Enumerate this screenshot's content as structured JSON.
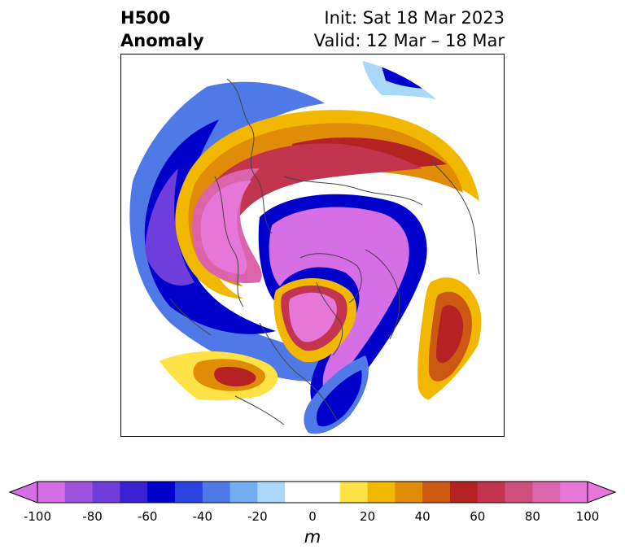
{
  "header": {
    "title_line1": "H500",
    "title_line2": "Anomaly",
    "init_line": "Init: Sat 18 Mar 2023",
    "valid_line": "Valid: 12 Mar – 18 Mar"
  },
  "colorbar": {
    "unit": "m",
    "ticks": [
      "-100",
      "-80",
      "-60",
      "-40",
      "-20",
      "0",
      "20",
      "40",
      "60",
      "80",
      "100"
    ],
    "colors": [
      "#d66ee6",
      "#9e52de",
      "#6e3ddc",
      "#3b1fd2",
      "#0000cc",
      "#2b44df",
      "#4f79e6",
      "#74acf2",
      "#aad8fa",
      "#ffffff",
      "#ffffff",
      "#ffe246",
      "#f2b800",
      "#e08c06",
      "#cc5812",
      "#b42222",
      "#c3344e",
      "#d04f7d",
      "#dc64aa",
      "#e676d8"
    ],
    "extend_low_color": "#d66ee6",
    "extend_high_color": "#e676d8"
  },
  "map": {
    "projection": "north-polar-stereographic",
    "quantity": "500 hPa geopotential height anomaly"
  }
}
